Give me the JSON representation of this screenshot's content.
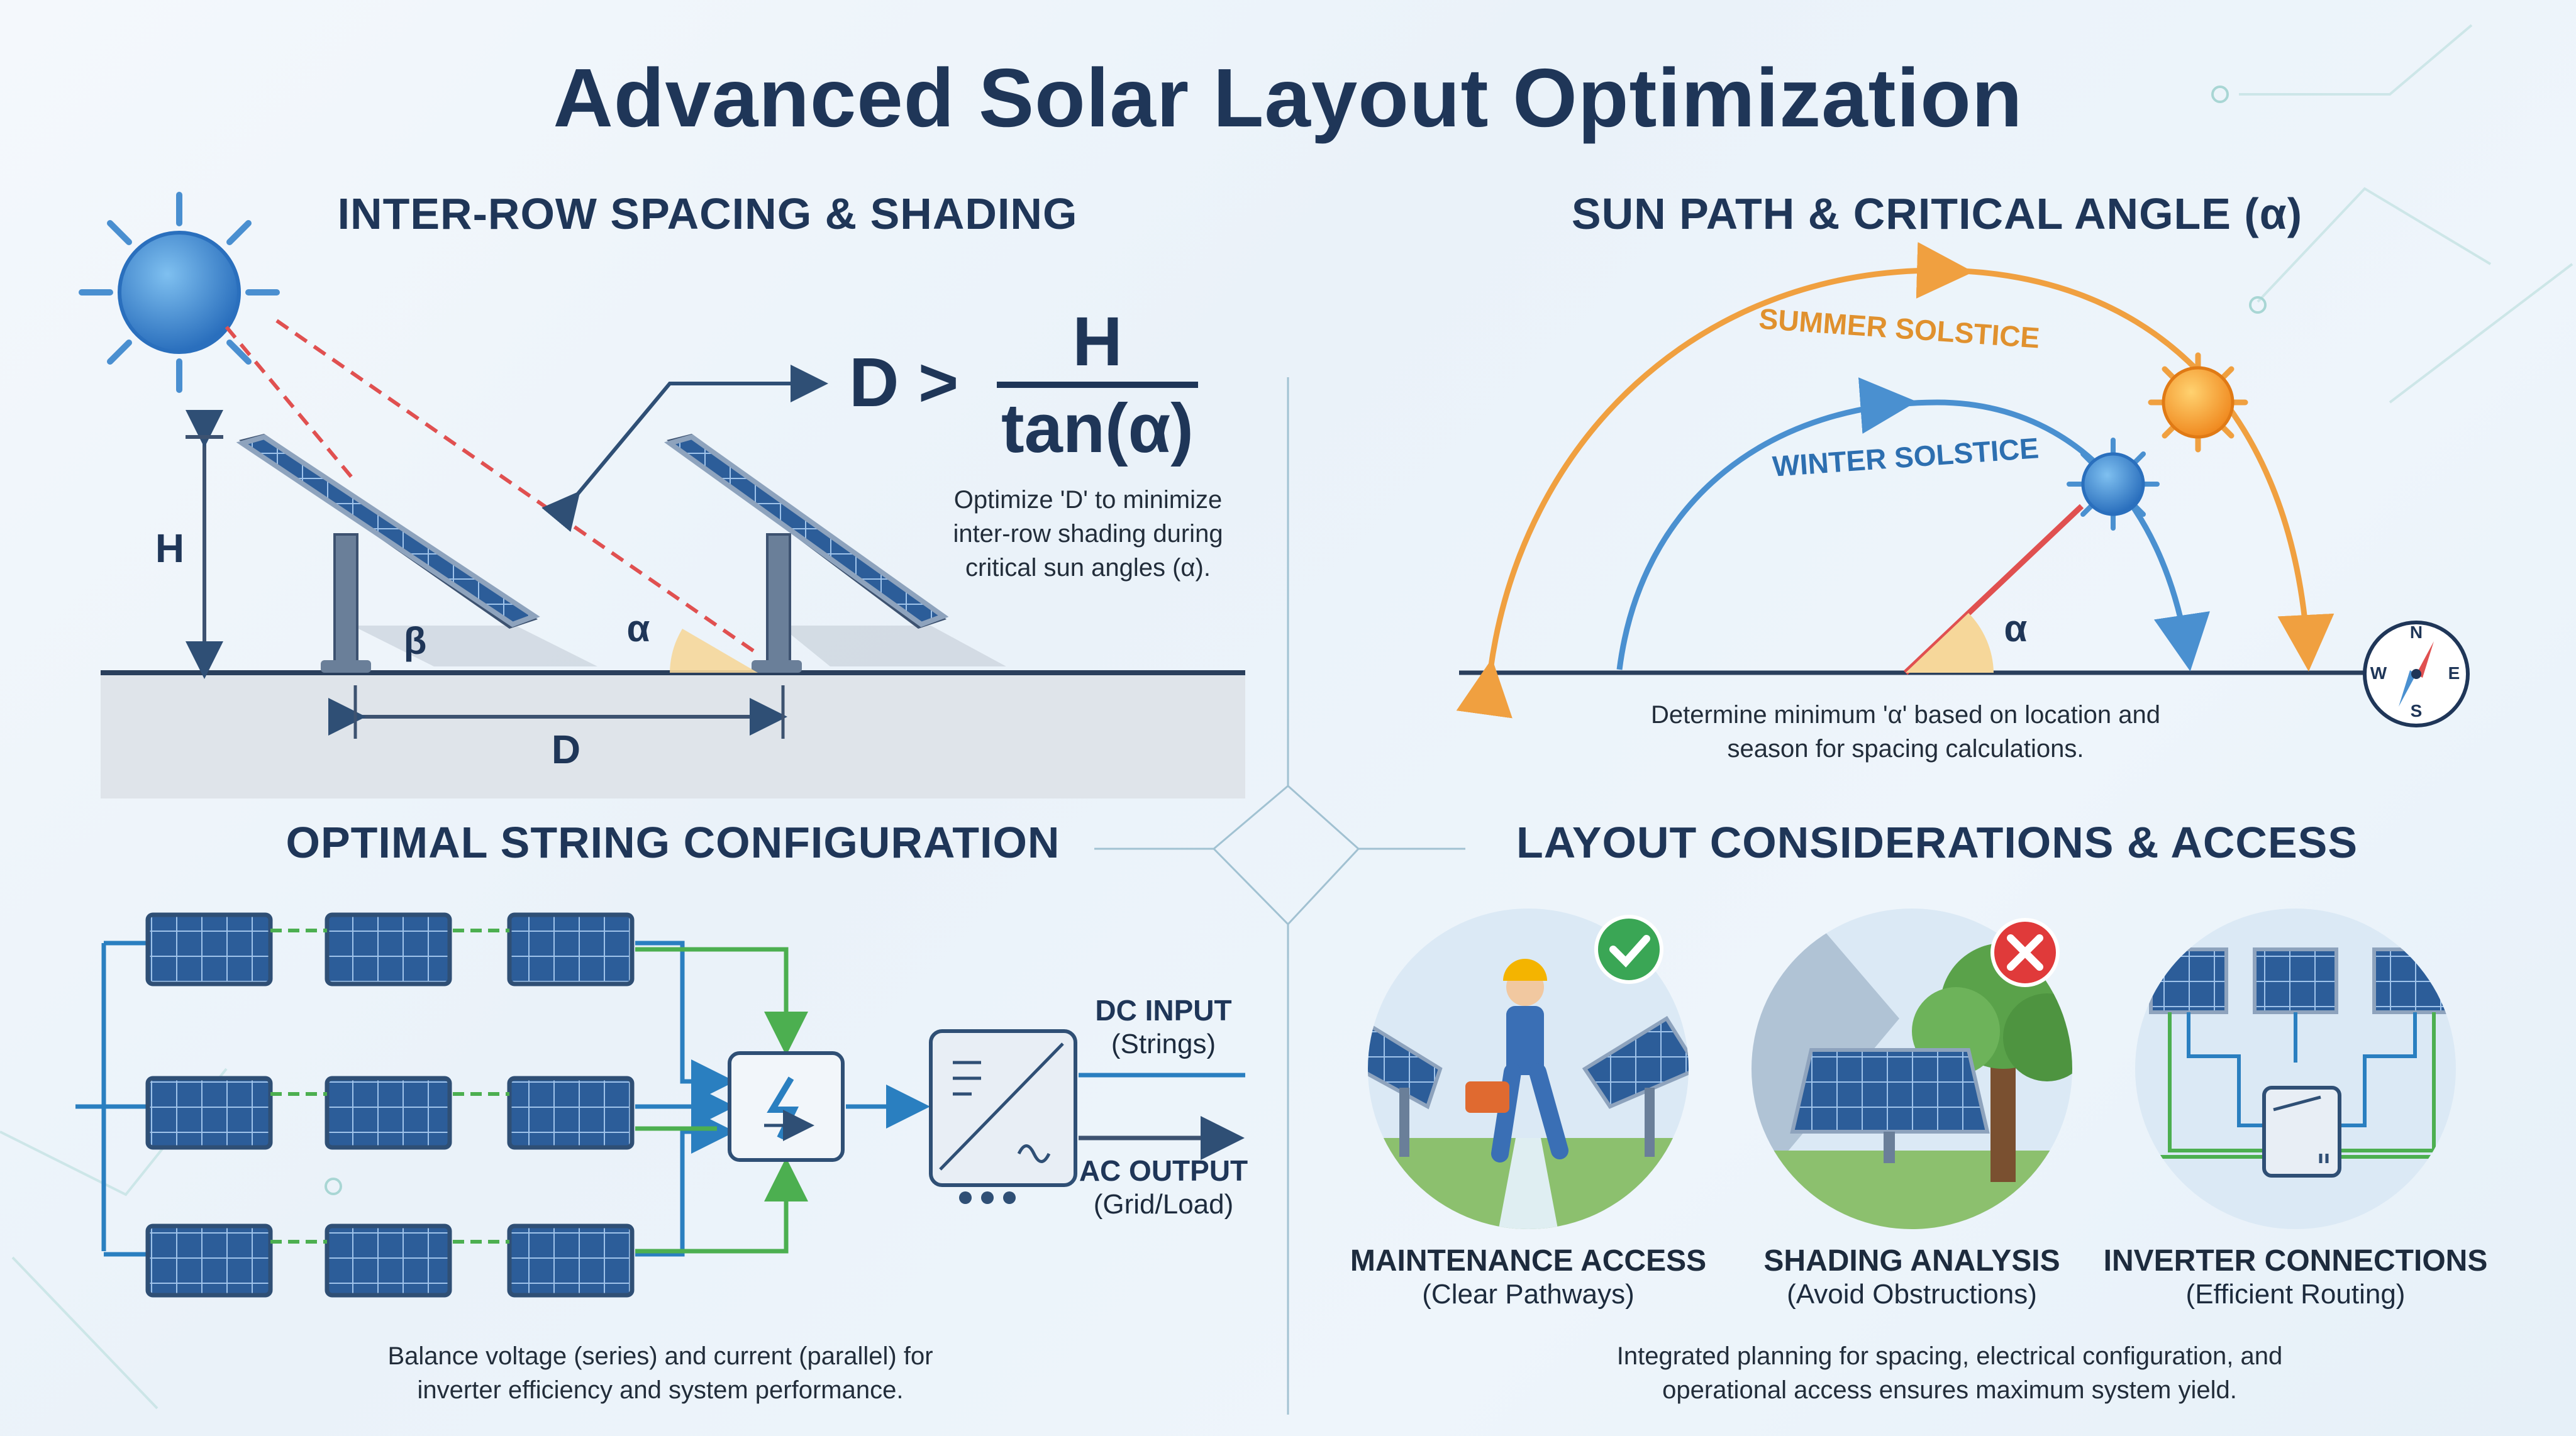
{
  "title": "Advanced Solar Layout Optimization",
  "panels": {
    "spacing": {
      "heading": "INTER-ROW SPACING & SHADING",
      "formula_lhs": "D >",
      "formula_num": "H",
      "formula_den": "tan(α)",
      "caption_lines": [
        "Optimize 'D' to minimize",
        "inter-row shading during",
        "critical sun angles (α)."
      ],
      "label_h": "H",
      "label_d": "D",
      "label_beta": "β",
      "label_alpha": "α"
    },
    "sunpath": {
      "heading": "SUN PATH & CRITICAL ANGLE (α)",
      "summer_label": "SUMMER SOLSTICE",
      "winter_label": "WINTER SOLSTICE",
      "label_alpha": "α",
      "compass": {
        "n": "N",
        "s": "S",
        "e": "E",
        "w": "W"
      },
      "caption_lines": [
        "Determine minimum 'α' based on location and",
        "season for spacing calculations."
      ]
    },
    "strings": {
      "heading": "OPTIMAL STRING CONFIGURATION",
      "dc_input": "DC INPUT",
      "dc_input_sub": "(Strings)",
      "ac_output": "AC OUTPUT",
      "ac_output_sub": "(Grid/Load)",
      "caption_lines": [
        "Balance voltage (series) and current (parallel) for",
        "inverter efficiency and system performance."
      ]
    },
    "layout": {
      "heading": "LAYOUT CONSIDERATIONS & ACCESS",
      "items": [
        {
          "label": "MAINTENANCE ACCESS",
          "sub": "(Clear Pathways)"
        },
        {
          "label": "SHADING ANALYSIS",
          "sub": "(Avoid Obstructions)"
        },
        {
          "label": "INVERTER CONNECTIONS",
          "sub": "(Efficient Routing)"
        }
      ],
      "caption_lines": [
        "Integrated planning for spacing, electrical configuration, and",
        "operational access ensures maximum system yield."
      ]
    }
  },
  "colors": {
    "navy": "#1f3658",
    "summer": "#f0a040",
    "winter": "#4a90d0",
    "string_blue": "#2a7fc0",
    "string_green": "#4caf50",
    "red_dash": "#e05050"
  }
}
